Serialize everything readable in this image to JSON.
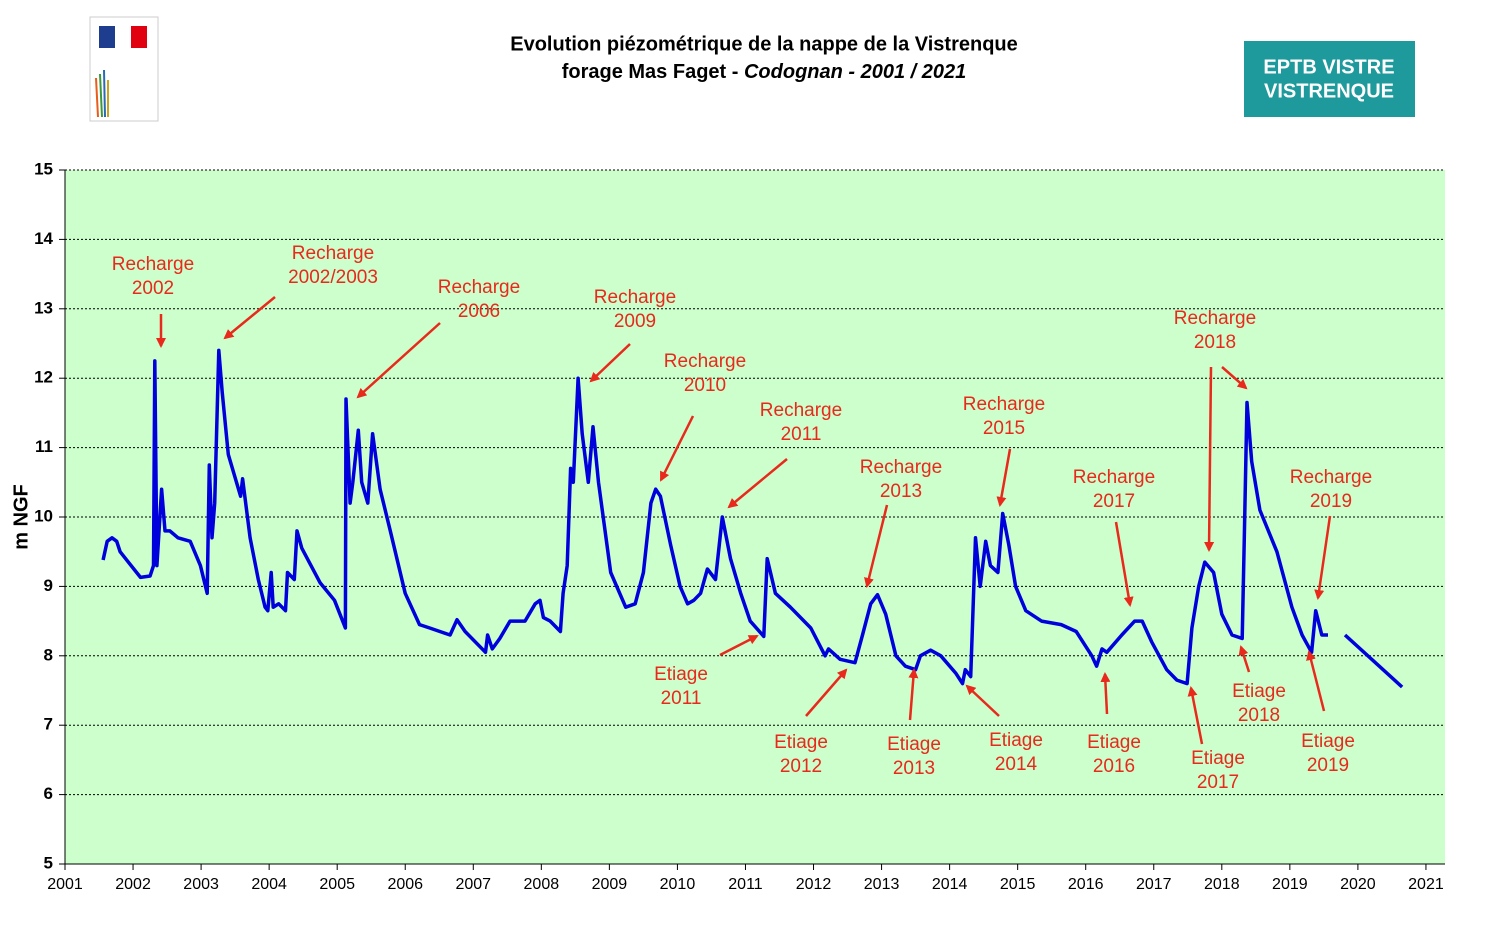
{
  "chart_data": {
    "type": "line",
    "title": "Evolution piézométrique de la nappe de la Vistrenque",
    "subtitle": [
      "forage Mas Faget - ",
      "Codognan - 2001 / 2021"
    ],
    "ylabel": "m NGF",
    "logo": [
      "EPTB  VISTRE",
      "VISTRENQUE"
    ],
    "logo_color": "#1e9a9c",
    "color": "#0000dd",
    "annotation_color": "#e8291c",
    "background": "#ccffcc",
    "grid": true,
    "xlim": [
      2001,
      2021.28
    ],
    "ylim": [
      5,
      15
    ],
    "xticks": [
      2001,
      2002,
      2003,
      2004,
      2005,
      2006,
      2007,
      2008,
      2009,
      2010,
      2011,
      2012,
      2013,
      2014,
      2015,
      2016,
      2017,
      2018,
      2019,
      2020,
      2021
    ],
    "yticks": [
      5,
      6,
      7,
      8,
      9,
      10,
      11,
      12,
      13,
      14,
      15
    ],
    "x": [
      2001.56,
      2001.62,
      2001.69,
      2001.76,
      2001.81,
      2002.11,
      2002.25,
      2002.3,
      2002.32,
      2002.35,
      2002.42,
      2002.47,
      2002.54,
      2002.66,
      2002.84,
      2002.99,
      2003.09,
      2003.12,
      2003.16,
      2003.2,
      2003.26,
      2003.31,
      2003.4,
      2003.58,
      2003.61,
      2003.72,
      2003.84,
      2003.94,
      2003.98,
      2004.03,
      2004.06,
      2004.14,
      2004.24,
      2004.27,
      2004.37,
      2004.41,
      2004.48,
      2004.75,
      2004.96,
      2005.12,
      2005.13,
      2005.19,
      2005.23,
      2005.31,
      2005.36,
      2005.45,
      2005.52,
      2005.63,
      2005.78,
      2006.0,
      2006.21,
      2006.36,
      2006.66,
      2006.76,
      2006.88,
      2007.18,
      2007.21,
      2007.28,
      2007.39,
      2007.54,
      2007.76,
      2007.91,
      2007.98,
      2008.03,
      2008.13,
      2008.28,
      2008.32,
      2008.38,
      2008.43,
      2008.47,
      2008.54,
      2008.6,
      2008.69,
      2008.76,
      2008.84,
      2009.02,
      2009.24,
      2009.38,
      2009.5,
      2009.61,
      2009.68,
      2009.75,
      2009.9,
      2010.04,
      2010.15,
      2010.24,
      2010.34,
      2010.44,
      2010.56,
      2010.66,
      2010.78,
      2010.93,
      2011.07,
      2011.27,
      2011.32,
      2011.44,
      2011.66,
      2011.96,
      2012.17,
      2012.22,
      2012.39,
      2012.61,
      2012.72,
      2012.84,
      2012.94,
      2013.06,
      2013.21,
      2013.35,
      2013.5,
      2013.57,
      2013.72,
      2013.87,
      2014.09,
      2014.19,
      2014.23,
      2014.31,
      2014.38,
      2014.45,
      2014.53,
      2014.6,
      2014.71,
      2014.78,
      2014.87,
      2014.97,
      2015.12,
      2015.35,
      2015.64,
      2015.86,
      2016.09,
      2016.16,
      2016.24,
      2016.31,
      2016.53,
      2016.72,
      2016.83,
      2016.97,
      2017.19,
      2017.34,
      2017.49,
      2017.56,
      2017.66,
      2017.75,
      2017.88,
      2018.0,
      2018.15,
      2018.3,
      2018.33,
      2018.37,
      2018.44,
      2018.56,
      2018.81,
      2019.03,
      2019.18,
      2019.32,
      2019.38,
      2019.47,
      2019.56,
      2019.7,
      2019.81,
      2020.65
    ],
    "values": [
      9.38,
      9.65,
      9.7,
      9.65,
      9.5,
      9.13,
      9.15,
      9.3,
      12.25,
      9.3,
      10.4,
      9.8,
      9.8,
      9.7,
      9.65,
      9.3,
      8.9,
      10.75,
      9.7,
      10.2,
      12.4,
      11.8,
      10.9,
      10.3,
      10.55,
      9.7,
      9.1,
      8.7,
      8.65,
      9.2,
      8.7,
      8.75,
      8.65,
      9.2,
      9.1,
      9.8,
      9.55,
      9.05,
      8.8,
      8.4,
      11.7,
      10.2,
      10.5,
      11.25,
      10.5,
      10.2,
      11.2,
      10.4,
      9.8,
      8.9,
      8.45,
      8.4,
      8.3,
      8.52,
      8.35,
      8.05,
      8.3,
      8.1,
      8.25,
      8.5,
      8.5,
      8.75,
      8.8,
      8.55,
      8.5,
      8.35,
      8.9,
      9.3,
      10.7,
      10.5,
      12.0,
      11.2,
      10.5,
      11.3,
      10.5,
      9.2,
      8.7,
      8.75,
      9.2,
      10.2,
      10.4,
      10.3,
      9.6,
      9.0,
      8.75,
      8.8,
      8.9,
      9.25,
      9.1,
      10.0,
      9.4,
      8.9,
      8.5,
      8.28,
      9.4,
      8.9,
      8.7,
      8.4,
      8.0,
      8.1,
      7.95,
      7.9,
      8.3,
      8.75,
      8.88,
      8.6,
      8.0,
      7.85,
      7.8,
      8.0,
      8.08,
      8.0,
      7.75,
      7.6,
      7.8,
      7.7,
      9.7,
      9.0,
      9.65,
      9.3,
      9.2,
      10.05,
      9.6,
      9.0,
      8.65,
      8.5,
      8.45,
      8.35,
      8.0,
      7.85,
      8.1,
      8.05,
      8.3,
      8.5,
      8.5,
      8.2,
      7.8,
      7.65,
      7.6,
      8.4,
      9.0,
      9.35,
      9.2,
      8.6,
      8.3,
      8.25,
      9.7,
      11.65,
      10.8,
      10.1,
      9.5,
      8.7,
      8.3,
      8.05,
      8.65,
      8.3,
      8.3,
      null,
      8.3,
      7.55
    ],
    "annotations": [
      [
        "Recharge",
        "2002"
      ],
      [
        "Recharge",
        "2002/2003"
      ],
      [
        "Recharge",
        "2006"
      ],
      [
        "Recharge",
        "2009"
      ],
      [
        "Recharge",
        "2010"
      ],
      [
        "Recharge",
        "2011"
      ],
      [
        "Recharge",
        "2013"
      ],
      [
        "Recharge",
        "2015"
      ],
      [
        "Recharge",
        "2017"
      ],
      [
        "Recharge",
        "2018"
      ],
      [
        "Recharge",
        "2019"
      ],
      [
        "Etiage",
        "2011"
      ],
      [
        "Etiage",
        "2012"
      ],
      [
        "Etiage",
        "2013"
      ],
      [
        "Etiage",
        "2014"
      ],
      [
        "Etiage",
        "2016"
      ],
      [
        "Etiage",
        "2017"
      ],
      [
        "Etiage",
        "2018"
      ],
      [
        "Etiage",
        "2019"
      ]
    ]
  }
}
